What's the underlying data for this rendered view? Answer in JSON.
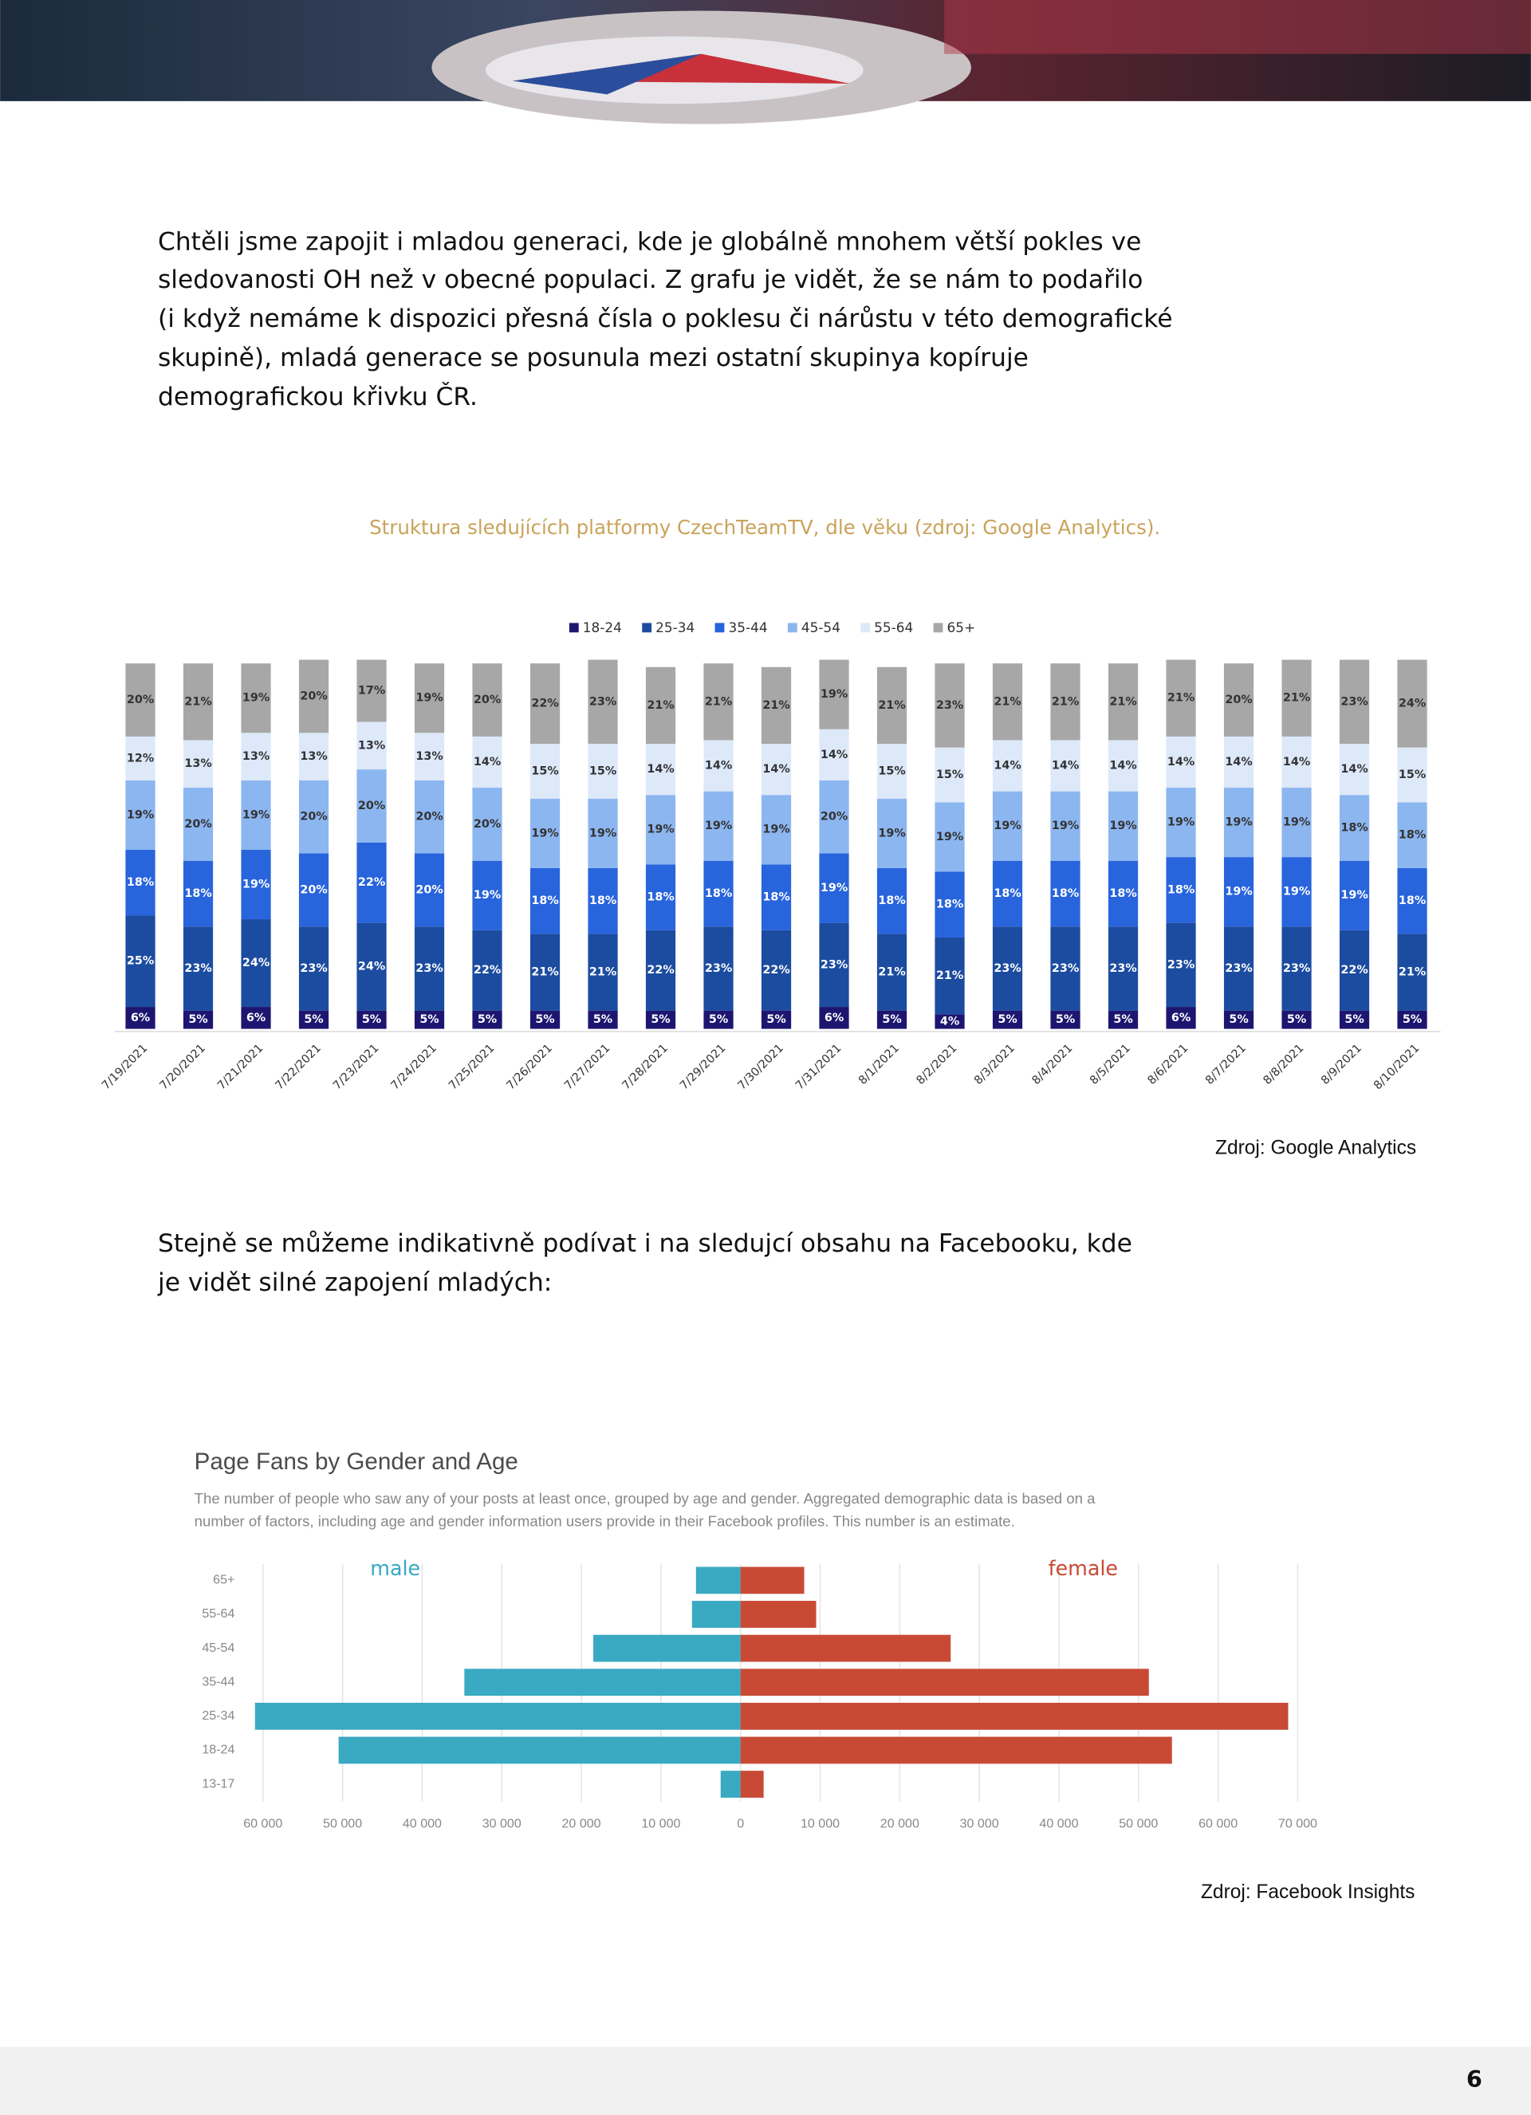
{
  "paragraphs": [
    [
      "Chtěli jsme zapojit i mladou generaci, kde je globálně mnohem větší pokles ve",
      "sledovanosti OH než v obecné populaci. Z grafu je vidět, že se nám to podařilo",
      "(i když nemáme k dispozici přesná čísla o poklesu či nárůstu v této demografické",
      "skupině), mladá generace se posunula mezi ostatní skupinya kopíruje",
      "demografickou křivku ČR."
    ],
    [
      "Stejně se můžeme indikativně podívat i na sledujcí obsahu na Facebooku, kde",
      "je vidět silné zapojení mladých:"
    ]
  ],
  "chart_data": [
    {
      "type": "bar",
      "stacked": true,
      "legend": "top",
      "title": "Struktura sledujících platformy CzechTeamTV, dle věku (zdroj: Google Analytics).",
      "categories": [
        "7/19/2021",
        "7/20/2021",
        "7/21/2021",
        "7/22/2021",
        "7/23/2021",
        "7/24/2021",
        "7/25/2021",
        "7/26/2021",
        "7/27/2021",
        "7/28/2021",
        "7/29/2021",
        "7/30/2021",
        "7/31/2021",
        "8/1/2021",
        "8/2/2021",
        "8/3/2021",
        "8/4/2021",
        "8/5/2021",
        "8/6/2021",
        "8/7/2021",
        "8/8/2021",
        "8/9/2021",
        "8/10/2021"
      ],
      "ylim": [
        0,
        100
      ],
      "series": [
        {
          "name": "18-24",
          "color": "#1d1670",
          "values": [
            6,
            5,
            6,
            5,
            5,
            5,
            5,
            5,
            5,
            5,
            5,
            5,
            6,
            5,
            4,
            5,
            5,
            5,
            6,
            5,
            5,
            5,
            5
          ],
          "value_labels": [
            "6%",
            "5%",
            "6%",
            "5%",
            "5%",
            "5%",
            "5%",
            "5%",
            "5%",
            "5%",
            "5%",
            "5%",
            "6%",
            "5%",
            "4%",
            "5%",
            "5%",
            "5%",
            "6%",
            "5%",
            "5%",
            "5%",
            "5%"
          ]
        },
        {
          "name": "25-34",
          "color": "#1c4ca0",
          "values": [
            25,
            23,
            24,
            23,
            24,
            23,
            22,
            21,
            21,
            22,
            23,
            22,
            23,
            21,
            21,
            23,
            23,
            23,
            23,
            23,
            23,
            22,
            21
          ],
          "value_labels": [
            "25%",
            "23%",
            "24%",
            "23%",
            "24%",
            "23%",
            "22%",
            "21%",
            "21%",
            "22%",
            "23%",
            "22%",
            "23%",
            "21%",
            "21%",
            "23%",
            "23%",
            "23%",
            "23%",
            "23%",
            "23%",
            "22%",
            "21%"
          ]
        },
        {
          "name": "35-44",
          "color": "#2864dc",
          "values": [
            18,
            18,
            19,
            20,
            22,
            20,
            19,
            18,
            18,
            18,
            18,
            18,
            19,
            18,
            18,
            18,
            18,
            18,
            18,
            19,
            19,
            19,
            18
          ],
          "value_labels": [
            "18%",
            "18%",
            "19%",
            "20%",
            "22%",
            "20%",
            "19%",
            "18%",
            "18%",
            "18%",
            "18%",
            "18%",
            "19%",
            "18%",
            "18%",
            "18%",
            "18%",
            "18%",
            "18%",
            "19%",
            "19%",
            "19%",
            "18%"
          ]
        },
        {
          "name": "45-54",
          "color": "#8cb6f0",
          "values": [
            19,
            20,
            19,
            20,
            20,
            20,
            20,
            19,
            19,
            19,
            19,
            19,
            20,
            19,
            19,
            19,
            19,
            19,
            19,
            19,
            19,
            18,
            18
          ],
          "value_labels": [
            "19%",
            "20%",
            "19%",
            "20%",
            "20%",
            "20%",
            "20%",
            "19%",
            "19%",
            "19%",
            "19%",
            "19%",
            "20%",
            "19%",
            "19%",
            "19%",
            "19%",
            "19%",
            "19%",
            "19%",
            "19%",
            "18%",
            "18%"
          ]
        },
        {
          "name": "55-64",
          "color": "#dde9f9",
          "values": [
            12,
            13,
            13,
            13,
            13,
            13,
            14,
            15,
            15,
            14,
            14,
            14,
            14,
            15,
            15,
            14,
            14,
            14,
            14,
            14,
            14,
            14,
            15
          ],
          "value_labels": [
            "12%",
            "13%",
            "13%",
            "13%",
            "13%",
            "13%",
            "14%",
            "15%",
            "15%",
            "14%",
            "14%",
            "14%",
            "14%",
            "15%",
            "15%",
            "14%",
            "14%",
            "14%",
            "14%",
            "14%",
            "14%",
            "14%",
            "15%"
          ]
        },
        {
          "name": "65+",
          "color": "#a7a7a7",
          "values": [
            20,
            21,
            19,
            20,
            17,
            19,
            20,
            22,
            23,
            21,
            21,
            21,
            19,
            21,
            23,
            21,
            21,
            21,
            21,
            20,
            21,
            23,
            24
          ],
          "value_labels": [
            "20%",
            "21%",
            "19%",
            "20%",
            "17%",
            "19%",
            "20%",
            "22%",
            "23%",
            "21%",
            "21%",
            "21%",
            "19%",
            "21%",
            "23%",
            "21%",
            "21%",
            "21%",
            "21%",
            "20%",
            "21%",
            "23%",
            "24%"
          ]
        }
      ]
    },
    {
      "type": "pyramid",
      "grid": true,
      "title": "Page Fans by Gender and Age",
      "subtitle": [
        "The number of people who saw any of your posts at least once, grouped by age and gender. Aggregated demographic data is based on a",
        "number of factors, including age and gender information users provide in their Facebook profiles. This number is an estimate."
      ],
      "categories": [
        "65+",
        "55-64",
        "45-54",
        "35-44",
        "25-34",
        "18-24",
        "13-17"
      ],
      "xlim_left": [
        0,
        61500
      ],
      "xlim_right": [
        0,
        70500
      ],
      "xticks_left": [
        {
          "value": 60000,
          "label": "60 000"
        },
        {
          "value": 50000,
          "label": "50 000"
        },
        {
          "value": 40000,
          "label": "40 000"
        },
        {
          "value": 30000,
          "label": "30 000"
        },
        {
          "value": 20000,
          "label": "20 000"
        },
        {
          "value": 10000,
          "label": "10 000"
        }
      ],
      "xticks_right": [
        0,
        {
          "value": 10000,
          "label": "10 000"
        },
        {
          "value": 20000,
          "label": "20 000"
        },
        {
          "value": 30000,
          "label": "30 000"
        },
        {
          "value": 40000,
          "label": "40 000"
        },
        {
          "value": 50000,
          "label": "50 000"
        },
        {
          "value": 60000,
          "label": "60 000"
        },
        {
          "value": 70000,
          "label": "70 000"
        }
      ],
      "series": [
        {
          "name": "male",
          "side": "left",
          "color": "#3aa9c2",
          "values": [
            5600,
            6100,
            18500,
            34700,
            61000,
            50500,
            2500
          ]
        },
        {
          "name": "female",
          "side": "right",
          "color": "#c84a35",
          "values": [
            8000,
            9500,
            26400,
            51300,
            68800,
            54200,
            2900
          ]
        }
      ]
    }
  ],
  "sources": [
    "Zdroj: Google Analytics",
    "Zdroj: Facebook Insights"
  ],
  "page_number": 6
}
